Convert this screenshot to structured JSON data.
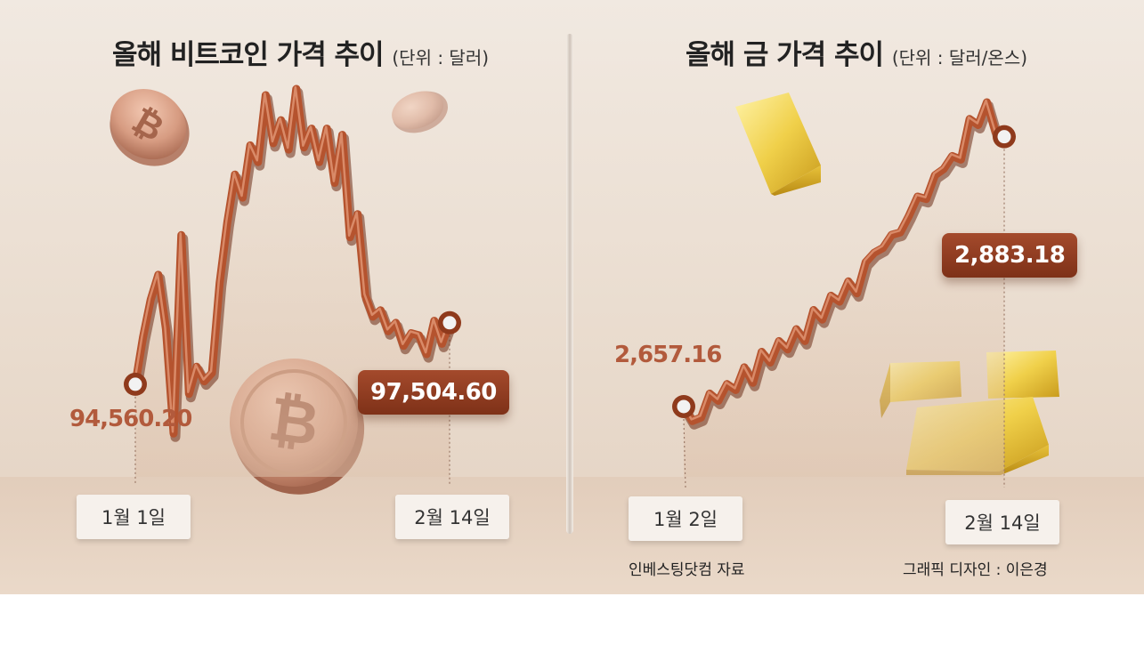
{
  "chart_data": [
    {
      "type": "line",
      "title": "올해 비트코인 가격 추이",
      "unit_label": "(단위 : 달러)",
      "x_labels": [
        "1월 1일",
        "2월 14일"
      ],
      "start_value_label": "94,560.20",
      "end_value_label": "97,504.60",
      "series": [
        {
          "values": [
            94560.2,
            96800,
            98600,
            99800,
            97200,
            92200,
            101700,
            94100,
            95400,
            94700,
            95100,
            99400,
            102300,
            104600,
            103500,
            106000,
            105200,
            108400,
            106100,
            107200,
            105800,
            108700,
            105900,
            106800,
            105200,
            106800,
            104200,
            106500,
            101600,
            102700,
            98800,
            97800,
            98100,
            97100,
            97500,
            96400,
            97000,
            96900,
            96000,
            97600,
            96500,
            97504.6
          ]
        }
      ],
      "colors": {
        "line": "#b5532e",
        "marker": "#f2f2f2"
      }
    },
    {
      "type": "line",
      "title": "올해 금 가격 추이",
      "unit_label": "(단위 : 달러/온스)",
      "x_labels": [
        "1월 2일",
        "2월 14일"
      ],
      "start_value_label": "2,657.16",
      "end_value_label": "2,883.18",
      "series": [
        {
          "values": [
            2657.16,
            2645,
            2648,
            2668,
            2662,
            2676,
            2671,
            2690,
            2677,
            2703,
            2694,
            2712,
            2705,
            2722,
            2712,
            2738,
            2730,
            2750,
            2745,
            2762,
            2752,
            2778,
            2786,
            2790,
            2801,
            2803,
            2817,
            2833,
            2831,
            2851,
            2856,
            2867,
            2864,
            2898,
            2893,
            2912,
            2887,
            2883.18
          ]
        }
      ],
      "colors": {
        "line": "#b5532e",
        "marker": "#f2f2f2"
      }
    }
  ],
  "credits": {
    "source": "인베스팅닷컴 자료",
    "design": "그래픽 디자인 : 이은경"
  },
  "icons": [
    "bitcoin-coin-icon",
    "gold-bar-icon"
  ]
}
